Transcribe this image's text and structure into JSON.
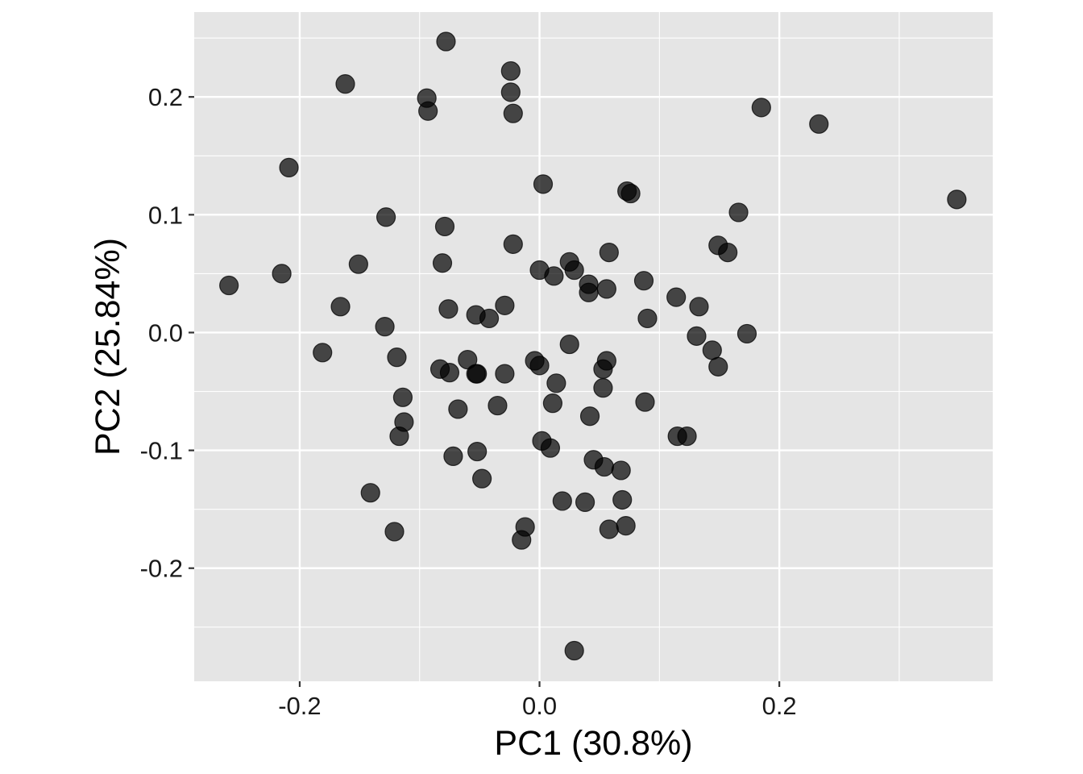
{
  "chart_data": {
    "type": "scatter",
    "xlabel": "PC1 (30.8%)",
    "ylabel": "PC2 (25.84%)",
    "xlim": [
      -0.288,
      0.378
    ],
    "ylim": [
      -0.296,
      0.272
    ],
    "x_ticks": [
      -0.2,
      0.0,
      0.2
    ],
    "x_tick_labels": [
      "-0.2",
      "0.0",
      "0.2"
    ],
    "y_ticks": [
      -0.2,
      -0.1,
      0.0,
      0.1,
      0.2
    ],
    "y_tick_labels": [
      "-0.2",
      "-0.1",
      "0.0",
      "0.1",
      "0.2"
    ],
    "grid": true,
    "point_color": "#000000",
    "panel_color": "#e5e5e5",
    "points": [
      {
        "x": -0.078,
        "y": 0.247
      },
      {
        "x": -0.162,
        "y": 0.211
      },
      {
        "x": -0.094,
        "y": 0.199
      },
      {
        "x": -0.093,
        "y": 0.188
      },
      {
        "x": -0.024,
        "y": 0.222
      },
      {
        "x": -0.024,
        "y": 0.204
      },
      {
        "x": -0.022,
        "y": 0.186
      },
      {
        "x": 0.185,
        "y": 0.191
      },
      {
        "x": 0.233,
        "y": 0.177
      },
      {
        "x": -0.209,
        "y": 0.14
      },
      {
        "x": 0.003,
        "y": 0.126
      },
      {
        "x": 0.073,
        "y": 0.12
      },
      {
        "x": 0.076,
        "y": 0.118
      },
      {
        "x": 0.348,
        "y": 0.113
      },
      {
        "x": -0.128,
        "y": 0.098
      },
      {
        "x": -0.079,
        "y": 0.09
      },
      {
        "x": 0.166,
        "y": 0.102
      },
      {
        "x": -0.022,
        "y": 0.075
      },
      {
        "x": 0.149,
        "y": 0.074
      },
      {
        "x": 0.157,
        "y": 0.068
      },
      {
        "x": 0.058,
        "y": 0.068
      },
      {
        "x": 0.025,
        "y": 0.06
      },
      {
        "x": -0.081,
        "y": 0.059
      },
      {
        "x": -0.151,
        "y": 0.058
      },
      {
        "x": 0.0,
        "y": 0.053
      },
      {
        "x": 0.029,
        "y": 0.053
      },
      {
        "x": 0.012,
        "y": 0.048
      },
      {
        "x": -0.259,
        "y": 0.04
      },
      {
        "x": -0.215,
        "y": 0.05
      },
      {
        "x": 0.087,
        "y": 0.044
      },
      {
        "x": 0.041,
        "y": 0.041
      },
      {
        "x": 0.056,
        "y": 0.037
      },
      {
        "x": 0.041,
        "y": 0.034
      },
      {
        "x": 0.114,
        "y": 0.03
      },
      {
        "x": 0.133,
        "y": 0.022
      },
      {
        "x": -0.166,
        "y": 0.022
      },
      {
        "x": -0.076,
        "y": 0.02
      },
      {
        "x": -0.029,
        "y": 0.023
      },
      {
        "x": -0.053,
        "y": 0.015
      },
      {
        "x": -0.042,
        "y": 0.012
      },
      {
        "x": 0.09,
        "y": 0.012
      },
      {
        "x": -0.129,
        "y": 0.005
      },
      {
        "x": 0.173,
        "y": -0.001
      },
      {
        "x": 0.131,
        "y": -0.003
      },
      {
        "x": 0.025,
        "y": -0.01
      },
      {
        "x": 0.144,
        "y": -0.015
      },
      {
        "x": -0.181,
        "y": -0.017
      },
      {
        "x": -0.119,
        "y": -0.021
      },
      {
        "x": -0.06,
        "y": -0.023
      },
      {
        "x": -0.004,
        "y": -0.024
      },
      {
        "x": 0.056,
        "y": -0.024
      },
      {
        "x": 0.149,
        "y": -0.029
      },
      {
        "x": 0.0,
        "y": -0.028
      },
      {
        "x": -0.083,
        "y": -0.031
      },
      {
        "x": -0.075,
        "y": -0.034
      },
      {
        "x": -0.053,
        "y": -0.035
      },
      {
        "x": -0.052,
        "y": -0.035
      },
      {
        "x": -0.029,
        "y": -0.035
      },
      {
        "x": 0.053,
        "y": -0.031
      },
      {
        "x": 0.014,
        "y": -0.043
      },
      {
        "x": 0.053,
        "y": -0.047
      },
      {
        "x": -0.114,
        "y": -0.055
      },
      {
        "x": 0.088,
        "y": -0.059
      },
      {
        "x": 0.011,
        "y": -0.06
      },
      {
        "x": -0.035,
        "y": -0.062
      },
      {
        "x": -0.068,
        "y": -0.065
      },
      {
        "x": 0.042,
        "y": -0.071
      },
      {
        "x": -0.113,
        "y": -0.076
      },
      {
        "x": -0.117,
        "y": -0.088
      },
      {
        "x": 0.115,
        "y": -0.088
      },
      {
        "x": 0.123,
        "y": -0.088
      },
      {
        "x": 0.002,
        "y": -0.092
      },
      {
        "x": 0.009,
        "y": -0.098
      },
      {
        "x": -0.052,
        "y": -0.101
      },
      {
        "x": -0.072,
        "y": -0.105
      },
      {
        "x": 0.045,
        "y": -0.108
      },
      {
        "x": 0.054,
        "y": -0.114
      },
      {
        "x": 0.068,
        "y": -0.117
      },
      {
        "x": -0.048,
        "y": -0.124
      },
      {
        "x": -0.141,
        "y": -0.136
      },
      {
        "x": 0.069,
        "y": -0.142
      },
      {
        "x": 0.019,
        "y": -0.143
      },
      {
        "x": 0.038,
        "y": -0.144
      },
      {
        "x": -0.012,
        "y": -0.165
      },
      {
        "x": 0.072,
        "y": -0.164
      },
      {
        "x": 0.058,
        "y": -0.167
      },
      {
        "x": -0.121,
        "y": -0.169
      },
      {
        "x": -0.015,
        "y": -0.176
      },
      {
        "x": 0.029,
        "y": -0.27
      }
    ]
  }
}
